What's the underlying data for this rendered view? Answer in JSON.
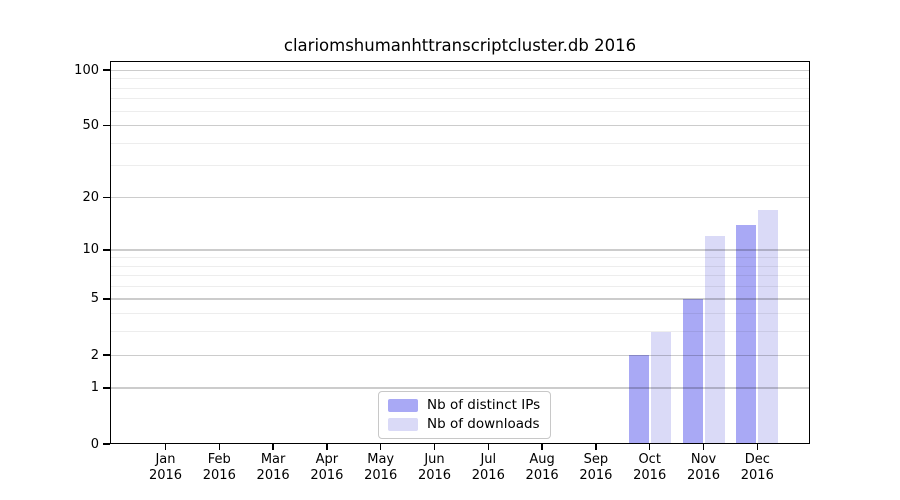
{
  "chart_data": {
    "type": "bar",
    "title": "clariomshumanhttranscriptcluster.db 2016",
    "xlabel": "",
    "ylabel": "",
    "year_label": "2016",
    "categories": [
      "Jan",
      "Feb",
      "Mar",
      "Apr",
      "May",
      "Jun",
      "Jul",
      "Aug",
      "Sep",
      "Oct",
      "Nov",
      "Dec"
    ],
    "series": [
      {
        "name": "Nb of distinct IPs",
        "color": "#a9a9f5",
        "values": [
          0,
          0,
          0,
          0,
          0,
          0,
          0,
          0,
          0,
          2,
          5,
          14
        ]
      },
      {
        "name": "Nb of downloads",
        "color": "#dadaf7",
        "values": [
          0,
          0,
          0,
          0,
          0,
          0,
          0,
          0,
          0,
          3,
          12,
          17
        ]
      }
    ],
    "y_scale": "log1p",
    "ylim": [
      0,
      113
    ],
    "y_ticks": [
      0,
      1,
      2,
      5,
      10,
      20,
      50,
      100
    ],
    "y_minor_gridlines": [
      3,
      4,
      6,
      7,
      8,
      9,
      30,
      40,
      60,
      70,
      80,
      90
    ],
    "grid": "on",
    "grid_over_bars": true,
    "legend_position": "lower center"
  }
}
